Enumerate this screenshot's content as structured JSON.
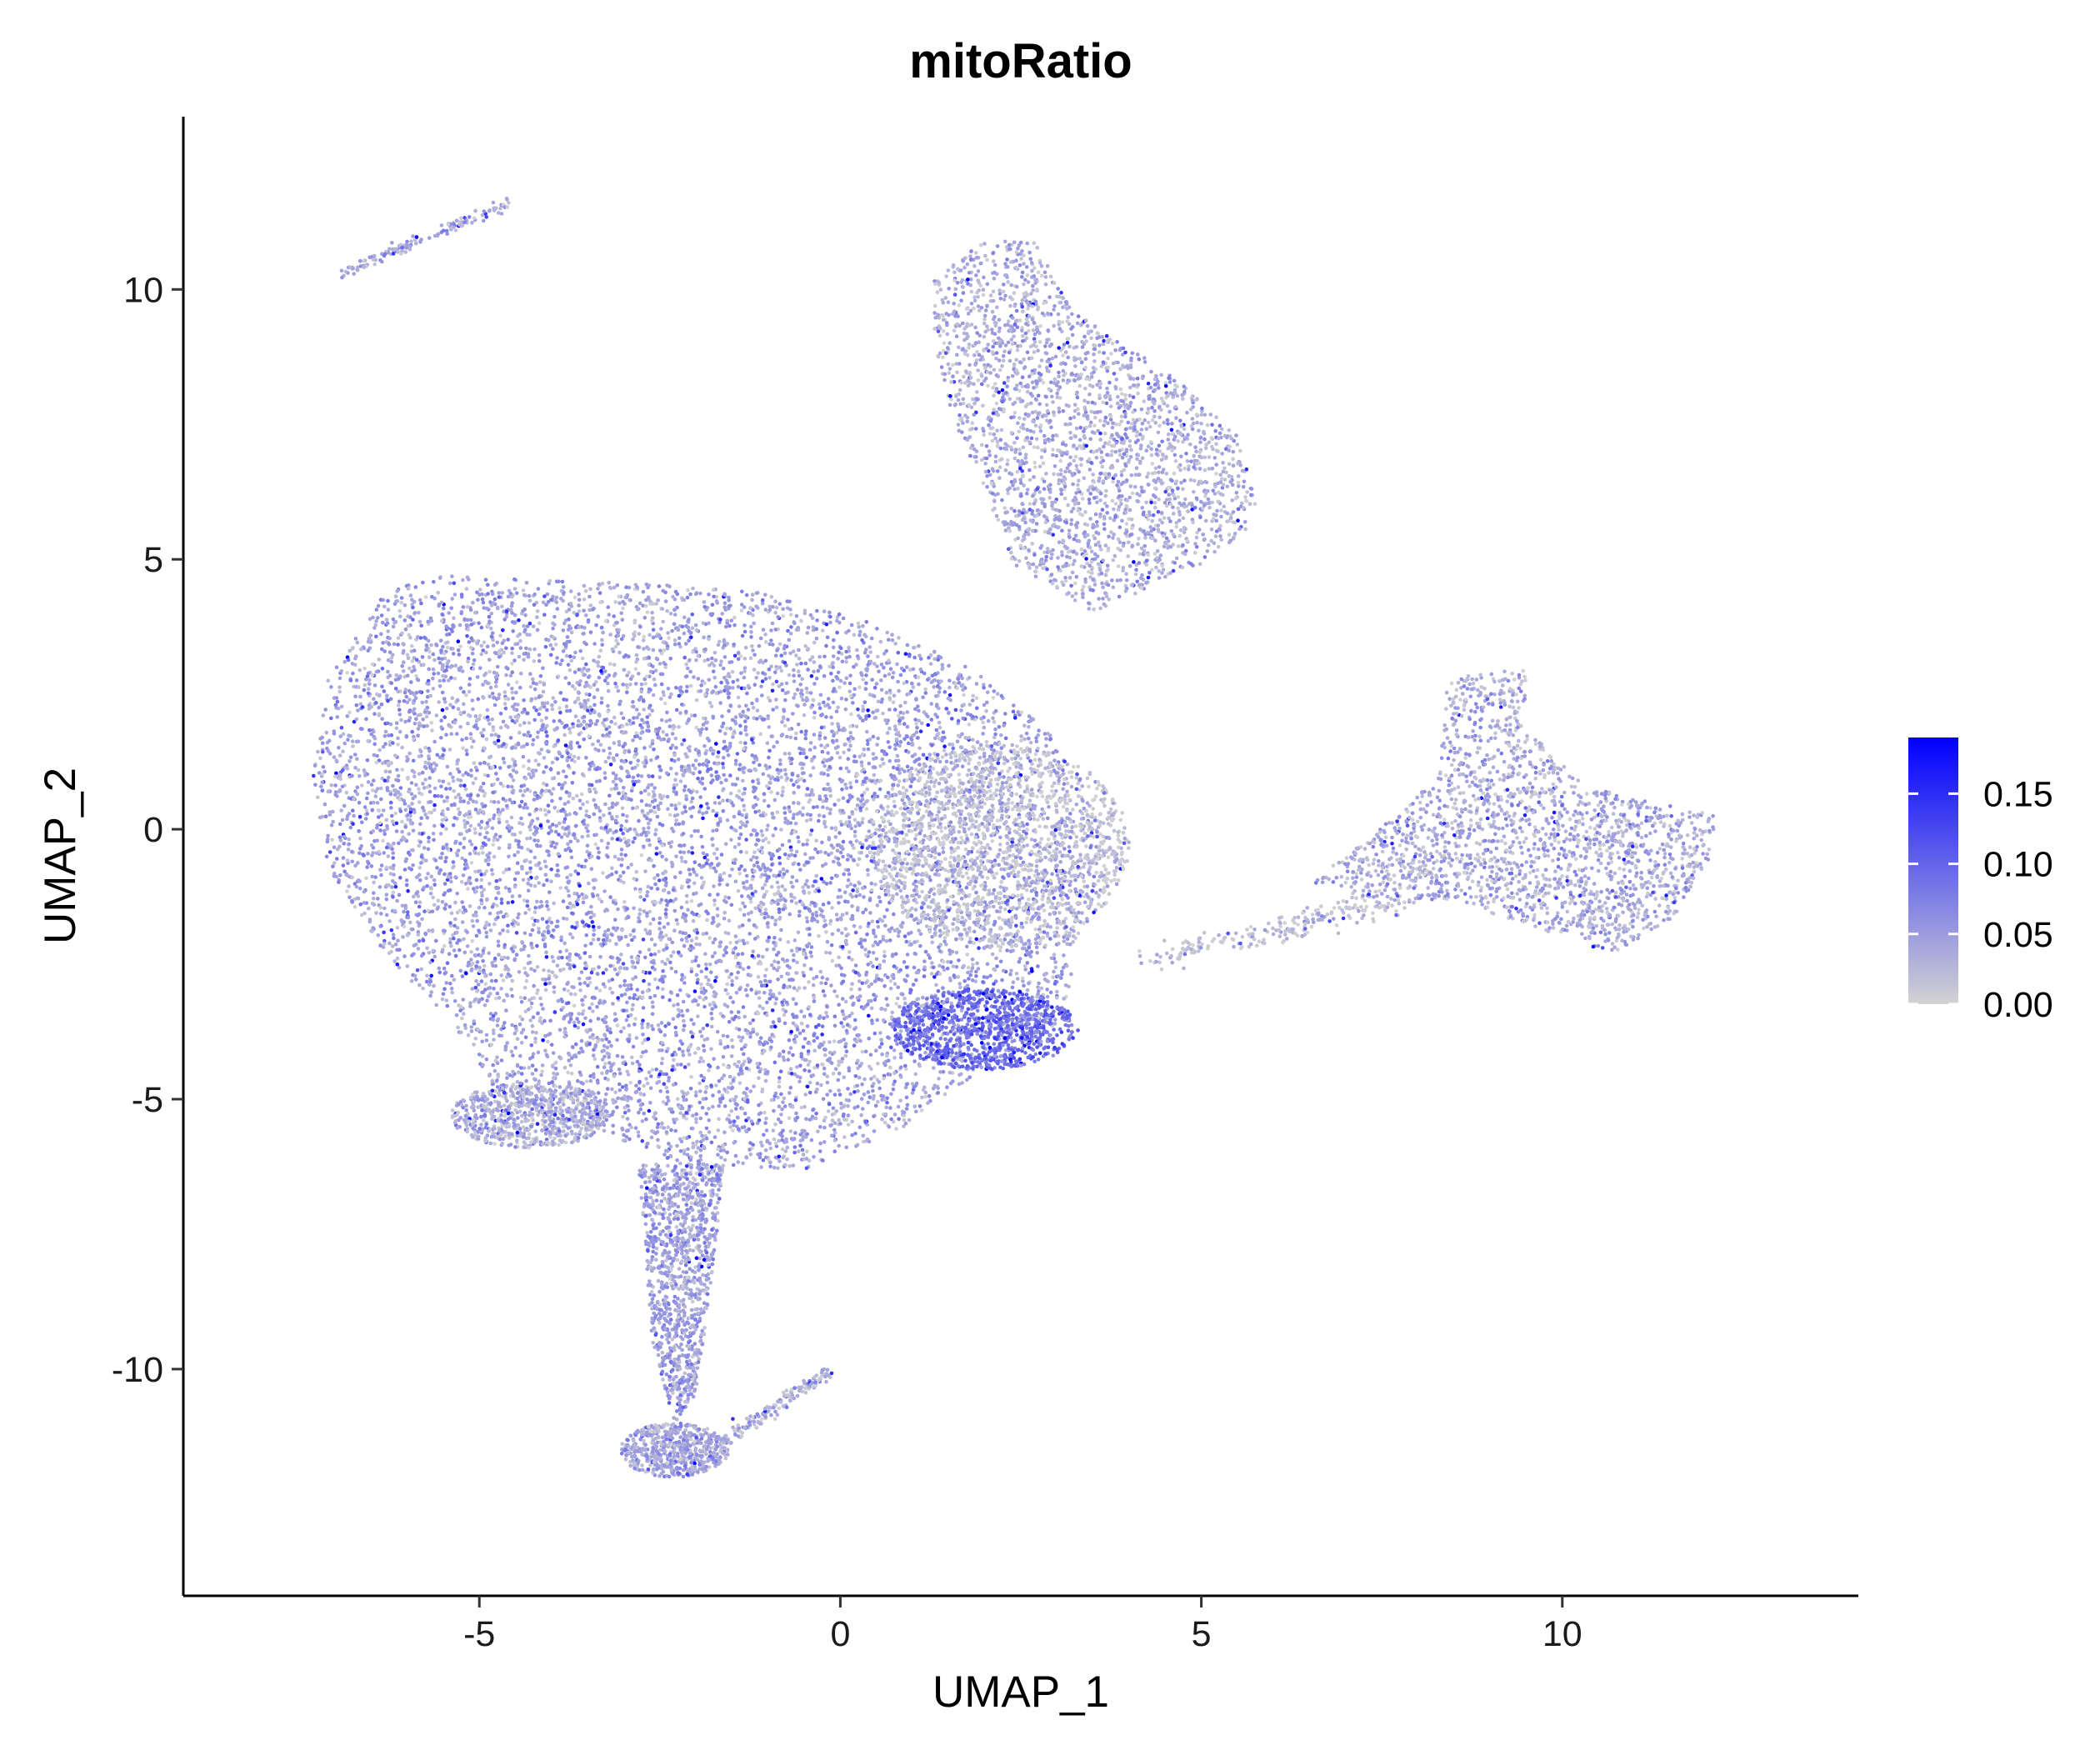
{
  "chart_data": {
    "type": "scatter",
    "title": "mitoRatio",
    "xlabel": "UMAP_1",
    "ylabel": "UMAP_2",
    "xlim": [
      -9.1,
      14.1
    ],
    "ylim": [
      -14.2,
      13.2
    ],
    "x_ticks": [
      {
        "value": -5,
        "label": "-5"
      },
      {
        "value": 0,
        "label": "0"
      },
      {
        "value": 5,
        "label": "5"
      },
      {
        "value": 10,
        "label": "10"
      }
    ],
    "y_ticks": [
      {
        "value": -10,
        "label": "-10"
      },
      {
        "value": -5,
        "label": "-5"
      },
      {
        "value": 0,
        "label": "0"
      },
      {
        "value": 5,
        "label": "5"
      },
      {
        "value": 10,
        "label": "10"
      }
    ],
    "grid": false,
    "color_scale": {
      "variable": "mitoRatio",
      "low_color": "#d3d3d3",
      "high_color": "#0000ff",
      "range": [
        0,
        0.19
      ],
      "ticks": [
        {
          "value": 0.0,
          "label": "0.00"
        },
        {
          "value": 0.05,
          "label": "0.05"
        },
        {
          "value": 0.1,
          "label": "0.10"
        },
        {
          "value": 0.15,
          "label": "0.15"
        }
      ],
      "legend_position": "right"
    },
    "clusters": [
      {
        "id": "main-body",
        "shape": "polygon",
        "n": 9000,
        "mito_base": 0.045,
        "polygon": [
          [
            -7.3,
            1.0
          ],
          [
            -7.1,
            2.8
          ],
          [
            -6.3,
            4.4
          ],
          [
            -5.5,
            4.7
          ],
          [
            -4,
            4.6
          ],
          [
            -1.5,
            4.5
          ],
          [
            0.3,
            3.9
          ],
          [
            1.8,
            3.0
          ],
          [
            2.9,
            1.8
          ],
          [
            3.3,
            0.4
          ],
          [
            3.9,
            -0.6
          ],
          [
            3.3,
            -2.0
          ],
          [
            3.1,
            -3.6
          ],
          [
            2.0,
            -4.4
          ],
          [
            0.9,
            -5.5
          ],
          [
            -0.5,
            -6.3
          ],
          [
            -2.2,
            -6.2
          ],
          [
            -3.5,
            -5.5
          ],
          [
            -4.8,
            -4.8
          ],
          [
            -5.4,
            -3.5
          ],
          [
            -6.2,
            -2.5
          ],
          [
            -7.1,
            -0.7
          ]
        ]
      },
      {
        "id": "main-grey-region",
        "shape": "ellipse",
        "n": 1500,
        "cx": 2.2,
        "cy": -0.3,
        "rx": 1.8,
        "ry": 1.9,
        "mito_base": 0.012
      },
      {
        "id": "main-bright-patch",
        "shape": "ellipse",
        "n": 900,
        "cx": 2.0,
        "cy": -3.7,
        "rx": 1.3,
        "ry": 0.75,
        "mito_base": 0.095
      },
      {
        "id": "lower-left-lobe",
        "shape": "ellipse",
        "n": 700,
        "cx": -4.3,
        "cy": -5.3,
        "rx": 1.1,
        "ry": 0.6,
        "mito_base": 0.035
      },
      {
        "id": "tail-stem",
        "shape": "polygon",
        "n": 1100,
        "mito_base": 0.045,
        "polygon": [
          [
            -2.8,
            -6.2
          ],
          [
            -1.6,
            -6.2
          ],
          [
            -1.8,
            -8.5
          ],
          [
            -2.0,
            -10.5
          ],
          [
            -2.3,
            -11.0
          ],
          [
            -2.6,
            -9.5
          ]
        ]
      },
      {
        "id": "tail-foot",
        "shape": "ellipse",
        "n": 550,
        "cx": -2.3,
        "cy": -11.5,
        "rx": 0.75,
        "ry": 0.5,
        "mito_base": 0.04
      },
      {
        "id": "tail-streak",
        "shape": "line",
        "n": 160,
        "from": [
          -1.7,
          -11.4
        ],
        "to": [
          -0.1,
          -10.0
        ],
        "width": 0.12,
        "mito_base": 0.03
      },
      {
        "id": "top-left-streak",
        "shape": "line",
        "n": 140,
        "from": [
          -6.9,
          10.3
        ],
        "to": [
          -4.6,
          11.6
        ],
        "width": 0.1,
        "mito_base": 0.04
      },
      {
        "id": "upper-island",
        "shape": "polygon",
        "n": 2400,
        "mito_base": 0.035,
        "polygon": [
          [
            1.3,
            10.2
          ],
          [
            2.0,
            10.9
          ],
          [
            2.7,
            10.9
          ],
          [
            3.2,
            9.6
          ],
          [
            4.6,
            8.4
          ],
          [
            5.5,
            7.3
          ],
          [
            5.8,
            5.8
          ],
          [
            5.3,
            5.1
          ],
          [
            4.3,
            4.5
          ],
          [
            3.5,
            4.0
          ],
          [
            2.4,
            4.9
          ],
          [
            2.0,
            6.3
          ],
          [
            1.5,
            7.8
          ],
          [
            1.3,
            9.0
          ]
        ]
      },
      {
        "id": "bridge",
        "shape": "line",
        "n": 220,
        "from": [
          4.3,
          -2.4
        ],
        "to": [
          7.8,
          -1.3
        ],
        "width": 0.25,
        "mito_base": 0.015
      },
      {
        "id": "right-island",
        "shape": "polygon",
        "n": 2000,
        "mito_base": 0.035,
        "polygon": [
          [
            6.5,
            -1.0
          ],
          [
            7.3,
            -0.2
          ],
          [
            8.3,
            1.0
          ],
          [
            8.4,
            2.8
          ],
          [
            9.6,
            3.0
          ],
          [
            9.4,
            2.0
          ],
          [
            10.3,
            0.8
          ],
          [
            11.2,
            0.5
          ],
          [
            12.1,
            0.3
          ],
          [
            12.1,
            -0.5
          ],
          [
            11.6,
            -1.6
          ],
          [
            10.7,
            -2.3
          ],
          [
            9.6,
            -1.8
          ],
          [
            8.4,
            -1.3
          ],
          [
            7.4,
            -1.3
          ]
        ]
      }
    ]
  }
}
